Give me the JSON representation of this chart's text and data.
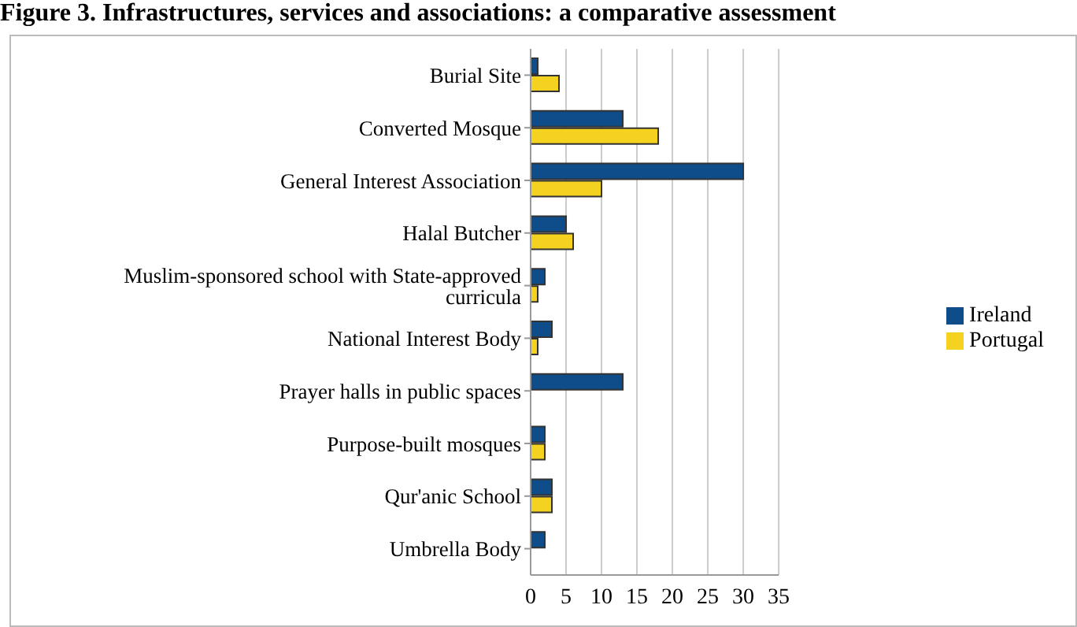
{
  "chart_data": {
    "type": "bar",
    "orientation": "horizontal",
    "title": "Figure 3. Infrastructures, services and associations: a comparative assessment",
    "categories": [
      "Burial Site",
      "Converted Mosque",
      "General Interest Association",
      "Halal Butcher",
      "Muslim-sponsored school with State-approved curricula",
      "National Interest Body",
      "Prayer halls in public spaces",
      "Purpose-built mosques",
      "Qur'anic School",
      "Umbrella Body"
    ],
    "series": [
      {
        "name": "Ireland",
        "color": "#0f4c8a",
        "values": [
          1,
          13,
          30,
          5,
          2,
          3,
          13,
          2,
          3,
          2
        ]
      },
      {
        "name": "Portugal",
        "color": "#f5d120",
        "values": [
          4,
          18,
          10,
          6,
          1,
          1,
          0,
          2,
          3,
          0
        ]
      }
    ],
    "xlim": [
      0,
      35
    ],
    "xticks": [
      0,
      5,
      10,
      15,
      20,
      25,
      30,
      35
    ],
    "grid": "x",
    "legend": "right"
  }
}
